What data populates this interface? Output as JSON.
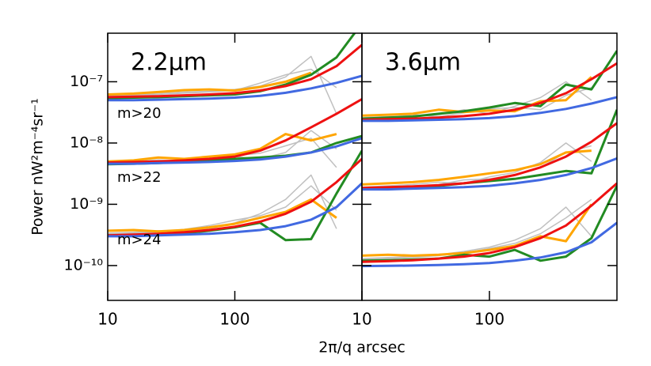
{
  "chart_data": [
    {
      "type": "line",
      "title": "2.2μm",
      "annotations": [
        "m>20",
        "m>22",
        "m>24"
      ],
      "xlabel": "2π/q arcsec",
      "ylabel": "Power   nW²m⁻⁴sr⁻¹",
      "xlog": true,
      "ylog": true,
      "xlim": [
        10,
        1000
      ],
      "ylim": [
        2.7e-11,
        6.2e-07
      ],
      "xticks": [
        10,
        100
      ],
      "yticks": [
        {
          "value": 1e-07,
          "label": "10⁻⁷"
        },
        {
          "value": 1e-08,
          "label": "10⁻⁸"
        },
        {
          "value": 1e-09,
          "label": "10⁻⁹"
        },
        {
          "value": 1e-10,
          "label": "10⁻¹⁰"
        }
      ],
      "x": [
        10,
        16,
        25,
        40,
        63,
        100,
        158,
        251,
        398,
        631,
        1000
      ],
      "series": [
        {
          "color": "#c0c0c0",
          "values": [
            6e-08,
            6.1e-08,
            6.5e-08,
            6.8e-08,
            7e-08,
            7.5e-08,
            8.5e-08,
            1.2e-07,
            2.6e-07,
            3e-08,
            null
          ]
        },
        {
          "color": "#c0c0c0",
          "values": [
            5.8e-08,
            6e-08,
            6.2e-08,
            6.5e-08,
            6.8e-08,
            7.2e-08,
            9.5e-08,
            1.3e-07,
            1.6e-07,
            8e-08,
            null
          ]
        },
        {
          "color": "#c0c0c0",
          "values": [
            4.8e-09,
            5e-09,
            5.3e-09,
            5e-09,
            5.5e-09,
            6e-09,
            5.5e-09,
            7e-09,
            1.6e-08,
            8e-09,
            null
          ]
        },
        {
          "color": "#c0c0c0",
          "values": [
            4.7e-09,
            4.9e-09,
            5e-09,
            5.4e-09,
            5.2e-09,
            6.2e-09,
            6.8e-09,
            9e-09,
            1.2e-08,
            4e-09,
            null
          ]
        },
        {
          "color": "#c0c0c0",
          "values": [
            3.4e-10,
            3.5e-10,
            3.7e-10,
            3.6e-10,
            4e-10,
            5e-10,
            7e-10,
            1.2e-09,
            3e-09,
            4e-10,
            null
          ]
        },
        {
          "color": "#c0c0c0",
          "values": [
            3.3e-10,
            3.4e-10,
            3.5e-10,
            3.9e-10,
            4.5e-10,
            5.5e-10,
            6.5e-10,
            9e-10,
            2e-09,
            8e-10,
            null
          ]
        },
        {
          "color": "#ffa500",
          "values": [
            6.2e-08,
            6.4e-08,
            6.8e-08,
            7.3e-08,
            7.5e-08,
            7.2e-08,
            8.2e-08,
            1e-07,
            1.4e-07,
            null,
            null
          ]
        },
        {
          "color": "#ffa500",
          "values": [
            5e-09,
            5.2e-09,
            5.8e-09,
            5.5e-09,
            6e-09,
            6.5e-09,
            8e-09,
            1.4e-08,
            1.1e-08,
            1.4e-08,
            null
          ]
        },
        {
          "color": "#ffa500",
          "values": [
            3.7e-10,
            3.8e-10,
            3.6e-10,
            3.8e-10,
            4.2e-10,
            4.8e-10,
            6e-10,
            7.5e-10,
            1.2e-09,
            6e-10,
            null
          ]
        },
        {
          "color": "#228b22",
          "values": [
            5.4e-08,
            5.5e-08,
            5.6e-08,
            5.8e-08,
            6e-08,
            6.2e-08,
            7e-08,
            9e-08,
            1.3e-07,
            2.5e-07,
            9e-07
          ]
        },
        {
          "color": "#228b22",
          "values": [
            4.5e-09,
            4.6e-09,
            4.7e-09,
            4.9e-09,
            5.2e-09,
            5.5e-09,
            5.8e-09,
            6.2e-09,
            7e-09,
            1e-08,
            1.3e-08
          ]
        },
        {
          "color": "#228b22",
          "values": [
            3.1e-10,
            3.1e-10,
            3.2e-10,
            3.4e-10,
            3.7e-10,
            4.2e-10,
            5e-10,
            2.6e-10,
            2.7e-10,
            1.5e-09,
            7.5e-09
          ]
        },
        {
          "color": "#ee1111",
          "values": [
            5.6e-08,
            5.7e-08,
            5.8e-08,
            6e-08,
            6.2e-08,
            6.5e-08,
            7.2e-08,
            8.5e-08,
            1.1e-07,
            1.8e-07,
            4e-07
          ]
        },
        {
          "color": "#ee1111",
          "values": [
            4.8e-09,
            4.9e-09,
            5e-09,
            5.2e-09,
            5.5e-09,
            6e-09,
            7.5e-09,
            1.1e-08,
            1.8e-08,
            3e-08,
            5.2e-08
          ]
        },
        {
          "color": "#ee1111",
          "values": [
            3.1e-10,
            3.2e-10,
            3.3e-10,
            3.5e-10,
            3.8e-10,
            4.3e-10,
            5.2e-10,
            7e-10,
            1.1e-09,
            2.3e-09,
            5.5e-09
          ]
        },
        {
          "color": "#4169e1",
          "values": [
            5e-08,
            5e-08,
            5.1e-08,
            5.2e-08,
            5.3e-08,
            5.5e-08,
            5.9e-08,
            6.6e-08,
            7.8e-08,
            9.6e-08,
            1.25e-07
          ]
        },
        {
          "color": "#4169e1",
          "values": [
            4.6e-09,
            4.6e-09,
            4.7e-09,
            4.8e-09,
            4.9e-09,
            5.1e-09,
            5.4e-09,
            6e-09,
            7e-09,
            8.8e-09,
            1.2e-08
          ]
        },
        {
          "color": "#4169e1",
          "values": [
            3e-10,
            3e-10,
            3.1e-10,
            3.2e-10,
            3.3e-10,
            3.5e-10,
            3.8e-10,
            4.4e-10,
            5.6e-10,
            9e-10,
            2.2e-09
          ]
        }
      ]
    },
    {
      "type": "line",
      "title": "3.6μm",
      "xlog": true,
      "ylog": true,
      "xlim": [
        10,
        1000
      ],
      "ylim": [
        2.7e-11,
        6.2e-07
      ],
      "xticks": [
        10,
        100
      ],
      "x": [
        10,
        16,
        25,
        40,
        63,
        100,
        158,
        251,
        398,
        631,
        1000
      ],
      "series": [
        {
          "color": "#c0c0c0",
          "values": [
            2.6e-08,
            2.7e-08,
            2.8e-08,
            2.9e-08,
            3.5e-08,
            3e-08,
            4e-08,
            5.5e-08,
            1e-07,
            5e-08,
            null
          ]
        },
        {
          "color": "#c0c0c0",
          "values": [
            2.5e-08,
            2.6e-08,
            2.9e-08,
            2.7e-08,
            3.1e-08,
            3.6e-08,
            3.8e-08,
            3.5e-08,
            6e-08,
            8e-08,
            null
          ]
        },
        {
          "color": "#c0c0c0",
          "values": [
            1.9e-09,
            2e-09,
            2.1e-09,
            2.3e-09,
            2.2e-09,
            2.8e-09,
            3.3e-09,
            4.8e-09,
            1e-08,
            5e-09,
            null
          ]
        },
        {
          "color": "#c0c0c0",
          "values": [
            1.8e-09,
            1.9e-09,
            2e-09,
            2.1e-09,
            2.5e-09,
            2.6e-09,
            3e-09,
            4e-09,
            7e-09,
            9e-09,
            null
          ]
        },
        {
          "color": "#c0c0c0",
          "values": [
            1.3e-10,
            1.35e-10,
            1.4e-10,
            1.5e-10,
            1.7e-10,
            2e-10,
            2.6e-10,
            4e-10,
            9e-10,
            3e-10,
            null
          ]
        },
        {
          "color": "#c0c0c0",
          "values": [
            1.25e-10,
            1.3e-10,
            1.35e-10,
            1.45e-10,
            1.6e-10,
            1.9e-10,
            2.3e-10,
            3.3e-10,
            6e-10,
            1.2e-09,
            null
          ]
        },
        {
          "color": "#ffa500",
          "values": [
            2.8e-08,
            2.9e-08,
            3e-08,
            3.5e-08,
            3.2e-08,
            3.4e-08,
            3.3e-08,
            4.8e-08,
            5e-08,
            1.2e-07,
            null
          ]
        },
        {
          "color": "#ffa500",
          "values": [
            2.1e-09,
            2.2e-09,
            2.3e-09,
            2.5e-09,
            2.8e-09,
            3.2e-09,
            3.6e-09,
            4.5e-09,
            7e-09,
            7.5e-09,
            null
          ]
        },
        {
          "color": "#ffa500",
          "values": [
            1.45e-10,
            1.5e-10,
            1.45e-10,
            1.5e-10,
            1.6e-10,
            1.8e-10,
            2.1e-10,
            3e-10,
            2.5e-10,
            1e-09,
            null
          ]
        },
        {
          "color": "#228b22",
          "values": [
            2.5e-08,
            2.6e-08,
            2.7e-08,
            3e-08,
            3.3e-08,
            3.8e-08,
            4.5e-08,
            4e-08,
            9e-08,
            7.5e-08,
            3.2e-07
          ]
        },
        {
          "color": "#228b22",
          "values": [
            1.8e-09,
            1.85e-09,
            1.9e-09,
            2e-09,
            2.2e-09,
            2.4e-09,
            2.6e-09,
            3e-09,
            3.5e-09,
            3.2e-09,
            3.5e-08
          ]
        },
        {
          "color": "#228b22",
          "values": [
            1.2e-10,
            1.22e-10,
            1.25e-10,
            1.3e-10,
            1.5e-10,
            1.4e-10,
            1.8e-10,
            1.2e-10,
            1.4e-10,
            2.8e-10,
            2e-09
          ]
        },
        {
          "color": "#ee1111",
          "values": [
            2.4e-08,
            2.45e-08,
            2.5e-08,
            2.6e-08,
            2.75e-08,
            3e-08,
            3.5e-08,
            4.5e-08,
            6.5e-08,
            1.1e-07,
            2e-07
          ]
        },
        {
          "color": "#ee1111",
          "values": [
            1.85e-09,
            1.9e-09,
            1.95e-09,
            2.05e-09,
            2.2e-09,
            2.5e-09,
            3e-09,
            4e-09,
            6e-09,
            1.05e-08,
            2.1e-08
          ]
        },
        {
          "color": "#ee1111",
          "values": [
            1.15e-10,
            1.18e-10,
            1.22e-10,
            1.3e-10,
            1.4e-10,
            1.6e-10,
            2e-10,
            2.8e-10,
            4.5e-10,
            9.5e-10,
            2.2e-09
          ]
        },
        {
          "color": "#4169e1",
          "values": [
            2.3e-08,
            2.3e-08,
            2.35e-08,
            2.4e-08,
            2.45e-08,
            2.55e-08,
            2.75e-08,
            3.1e-08,
            3.6e-08,
            4.4e-08,
            5.6e-08
          ]
        },
        {
          "color": "#4169e1",
          "values": [
            1.75e-09,
            1.75e-09,
            1.8e-09,
            1.85e-09,
            1.9e-09,
            2e-09,
            2.2e-09,
            2.5e-09,
            3e-09,
            3.9e-09,
            5.6e-09
          ]
        },
        {
          "color": "#4169e1",
          "values": [
            9.8e-11,
            9.9e-11,
            1e-10,
            1.02e-10,
            1.05e-10,
            1.1e-10,
            1.2e-10,
            1.35e-10,
            1.65e-10,
            2.4e-10,
            5e-10
          ]
        }
      ]
    }
  ]
}
